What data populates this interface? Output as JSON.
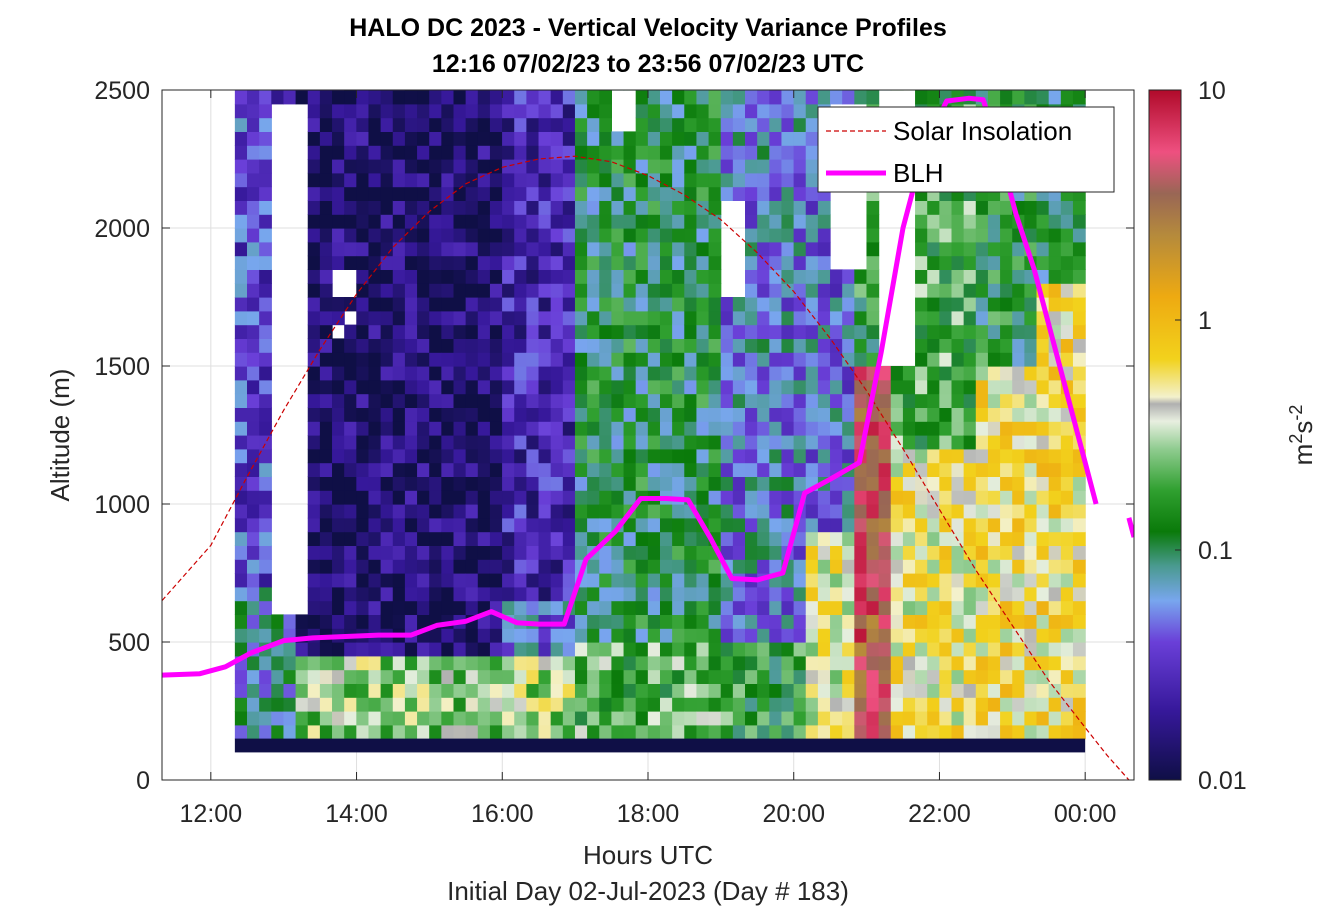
{
  "chart_data": {
    "type": "heatmap",
    "title_lines": [
      "HALO DC 2023 - Vertical Velocity Variance Profiles",
      "12:16 07/02/23 to 23:56 07/02/23  UTC"
    ],
    "xlabel": "Hours UTC",
    "footer": "Initial Day 02-Jul-2023 (Day # 183)",
    "ylabel": "Altitude (m)",
    "xlim": [
      11.33,
      24.67
    ],
    "ylim": [
      0,
      2500
    ],
    "x_ticks": [
      {
        "value": 12,
        "label": "12:00"
      },
      {
        "value": 14,
        "label": "14:00"
      },
      {
        "value": 16,
        "label": "16:00"
      },
      {
        "value": 18,
        "label": "18:00"
      },
      {
        "value": 20,
        "label": "20:00"
      },
      {
        "value": 22,
        "label": "22:00"
      },
      {
        "value": 24,
        "label": "00:00"
      }
    ],
    "y_ticks": [
      {
        "value": 0,
        "label": "0"
      },
      {
        "value": 500,
        "label": "500"
      },
      {
        "value": 1000,
        "label": "1000"
      },
      {
        "value": 1500,
        "label": "1500"
      },
      {
        "value": 2000,
        "label": "2000"
      },
      {
        "value": 2500,
        "label": "2500"
      }
    ],
    "grid": true,
    "colorbar": {
      "label_base": "m",
      "label_sup1": "2",
      "label_mid": "s",
      "label_sup2": "-2",
      "scale": "log",
      "range": [
        0.01,
        10
      ],
      "ticks": [
        {
          "value": 0.01,
          "label": "0.01"
        },
        {
          "value": 0.1,
          "label": "0.1"
        },
        {
          "value": 1,
          "label": "1"
        },
        {
          "value": 10,
          "label": "10"
        }
      ]
    },
    "legend": {
      "position": "top-right",
      "entries": [
        {
          "label": "Solar Insolation",
          "color": "#cc0000",
          "style": "dashed"
        },
        {
          "label": "BLH",
          "color": "#ff00ff",
          "style": "solid"
        }
      ]
    },
    "heatmap_grid": {
      "x_start": 12.33,
      "x_step": 0.1667,
      "n_cols": 70,
      "y_start": 100,
      "y_step": 50,
      "n_rows": 48,
      "bottom_band": {
        "alt_range": [
          100,
          150
        ],
        "value": 0.01
      }
    },
    "blh": {
      "color": "#ff00ff",
      "segments": [
        {
          "x": [
            11.33,
            11.85,
            12.2,
            12.55,
            13.0,
            13.4,
            13.85,
            14.3,
            14.75,
            15.1,
            15.5,
            15.85,
            16.2,
            16.5,
            16.85,
            17.15,
            17.55,
            17.9,
            18.25,
            18.55,
            18.85,
            19.15,
            19.5,
            19.85,
            20.15,
            20.5,
            20.9,
            21.2,
            21.5,
            21.8,
            22.1,
            22.4,
            22.6,
            22.8,
            23.05,
            23.3,
            23.55,
            23.85,
            24.15
          ],
          "y": [
            380,
            385,
            410,
            460,
            505,
            515,
            520,
            525,
            525,
            560,
            575,
            610,
            570,
            565,
            565,
            800,
            900,
            1020,
            1020,
            1015,
            880,
            730,
            725,
            750,
            1040,
            1090,
            1150,
            1550,
            2000,
            2300,
            2460,
            2470,
            2465,
            2300,
            2050,
            1850,
            1600,
            1300,
            1000
          ]
        },
        {
          "x": [
            24.6,
            24.67
          ],
          "y": [
            950,
            880
          ]
        }
      ]
    },
    "solar_insolation": {
      "color": "#cc0000",
      "style": "dashed",
      "x": [
        11.33,
        12.0,
        12.5,
        13.0,
        13.5,
        14.0,
        14.5,
        15.0,
        15.5,
        16.0,
        16.5,
        17.0,
        17.5,
        18.0,
        18.5,
        19.0,
        19.5,
        20.0,
        20.5,
        21.0,
        21.5,
        22.0,
        22.5,
        23.0,
        23.5,
        24.0,
        24.3,
        24.6
      ],
      "y": [
        650,
        850,
        1100,
        1340,
        1560,
        1760,
        1930,
        2060,
        2160,
        2220,
        2250,
        2260,
        2240,
        2190,
        2120,
        2030,
        1910,
        1770,
        1600,
        1410,
        1200,
        980,
        760,
        560,
        360,
        190,
        90,
        0
      ]
    }
  }
}
